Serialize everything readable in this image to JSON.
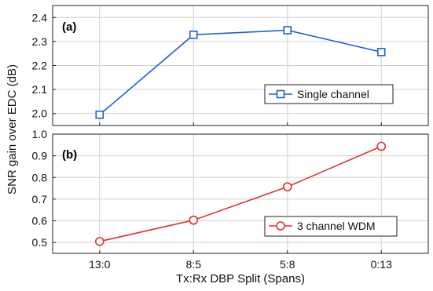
{
  "chart_data": {
    "type": "line",
    "xlabel": "Tx:Rx DBP Split (Spans)",
    "ylabel": "SNR gain over EDC (dB)",
    "categories": [
      "13:0",
      "8:5",
      "5:8",
      "0:13"
    ],
    "grid": true,
    "panels": [
      {
        "label": "(a)",
        "ylim": [
          1.95,
          2.45
        ],
        "yticks": [
          "2.0",
          "2.1",
          "2.2",
          "2.3",
          "2.4"
        ],
        "legend_position": "lower-right",
        "series": [
          {
            "name": "Single channel",
            "color": "#1f5fd1",
            "marker": "square",
            "values": [
              1.995,
              2.328,
              2.347,
              2.256
            ]
          }
        ]
      },
      {
        "label": "(b)",
        "ylim": [
          0.45,
          1.0
        ],
        "yticks": [
          "0.5",
          "0.6",
          "0.7",
          "0.8",
          "0.9",
          "1.0"
        ],
        "legend_position": "lower-right",
        "series": [
          {
            "name": "3 channel WDM",
            "color": "#e03131",
            "marker": "circle",
            "values": [
              0.505,
              0.603,
              0.757,
              0.944
            ]
          }
        ]
      }
    ]
  }
}
